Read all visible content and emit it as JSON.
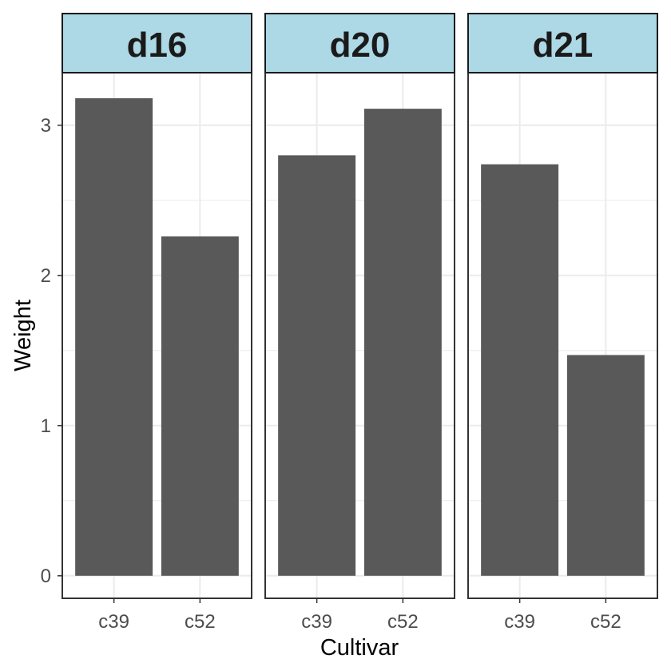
{
  "chart_data": {
    "type": "bar",
    "facet_by": "day",
    "facets": [
      {
        "label": "d16",
        "categories": [
          "c39",
          "c52"
        ],
        "values": [
          3.18,
          2.26
        ]
      },
      {
        "label": "d20",
        "categories": [
          "c39",
          "c52"
        ],
        "values": [
          2.8,
          3.11
        ]
      },
      {
        "label": "d21",
        "categories": [
          "c39",
          "c52"
        ],
        "values": [
          2.74,
          1.47
        ]
      }
    ],
    "xlabel": "Cultivar",
    "ylabel": "Weight",
    "ylim": [
      -0.15,
      3.35
    ],
    "yticks": [
      0,
      1,
      2,
      3
    ],
    "grid": true,
    "bar_color": "#595959",
    "strip_fill": "#add8e6",
    "grid_color": "#ebebeb",
    "panel_border_color": "#333333"
  }
}
